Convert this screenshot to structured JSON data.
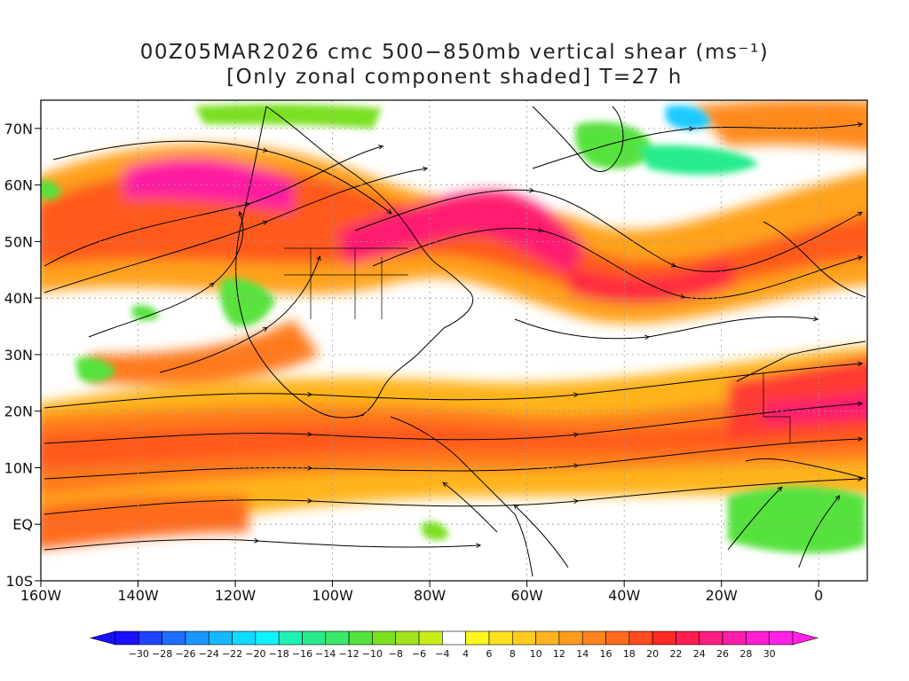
{
  "title": {
    "line1": "00Z05MAR2026 cmc 500−850mb vertical shear (ms⁻¹)",
    "line2": "[Only zonal component shaded] T=27 h"
  },
  "lon_ticks": [
    "160W",
    "140W",
    "120W",
    "100W",
    "80W",
    "60W",
    "40W",
    "20W",
    "0"
  ],
  "lat_ticks": [
    "70N",
    "60N",
    "50N",
    "40N",
    "30N",
    "20N",
    "10N",
    "EQ",
    "10S"
  ],
  "map_extent": {
    "lon": [
      -160,
      10
    ],
    "lat": [
      -10,
      75
    ]
  },
  "colorbar": {
    "labels": [
      "−30",
      "−28",
      "−26",
      "−24",
      "−22",
      "−20",
      "−18",
      "−16",
      "−14",
      "−12",
      "−10",
      "−8",
      "−6",
      "−4",
      "4",
      "6",
      "8",
      "10",
      "12",
      "14",
      "16",
      "18",
      "20",
      "22",
      "24",
      "26",
      "28",
      "30"
    ],
    "colors": [
      "#1a0fff",
      "#1e44ff",
      "#1f6dff",
      "#1a96ff",
      "#14b9ff",
      "#0ddcff",
      "#10f2ff",
      "#1ef2b4",
      "#28ec8c",
      "#3ce868",
      "#56e23e",
      "#7ce020",
      "#a2e41c",
      "#c8ee1a",
      "#ffffff",
      "#fff81e",
      "#ffe21e",
      "#ffcc1e",
      "#ffb41e",
      "#ff9c1e",
      "#ff841e",
      "#ff6c1e",
      "#ff4c1e",
      "#ff2a22",
      "#ff1e50",
      "#ff1e80",
      "#ff1eaa",
      "#ff1ed2",
      "#ff22e6"
    ],
    "under_color": "#1a0fff",
    "over_color": "#ff22e6"
  }
}
